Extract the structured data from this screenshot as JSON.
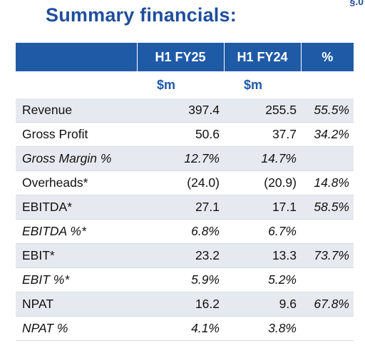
{
  "title": "Summary financials:",
  "corner_text": "§.0",
  "table": {
    "headers": [
      "",
      "H1 FY25",
      "H1 FY24",
      "%"
    ],
    "units": [
      "",
      "$m",
      "$m",
      ""
    ],
    "rows": [
      {
        "label": "Revenue",
        "fy25": "397.4",
        "fy24": "255.5",
        "pct": "55.5%",
        "italic": false,
        "shaded": true
      },
      {
        "label": "Gross Profit",
        "fy25": "50.6",
        "fy24": "37.7",
        "pct": "34.2%",
        "italic": false,
        "shaded": false
      },
      {
        "label": "Gross Margin %",
        "fy25": "12.7%",
        "fy24": "14.7%",
        "pct": "",
        "italic": true,
        "shaded": true
      },
      {
        "label": "Overheads*",
        "fy25": "(24.0)",
        "fy24": "(20.9)",
        "pct": "14.8%",
        "italic": false,
        "shaded": false
      },
      {
        "label": "EBITDA*",
        "fy25": "27.1",
        "fy24": "17.1",
        "pct": "58.5%",
        "italic": false,
        "shaded": true
      },
      {
        "label": "EBITDA %*",
        "fy25": "6.8%",
        "fy24": "6.7%",
        "pct": "",
        "italic": true,
        "shaded": false
      },
      {
        "label": "EBIT*",
        "fy25": "23.2",
        "fy24": "13.3",
        "pct": "73.7%",
        "italic": false,
        "shaded": true
      },
      {
        "label": "EBIT %*",
        "fy25": "5.9%",
        "fy24": "5.2%",
        "pct": "",
        "italic": true,
        "shaded": false
      },
      {
        "label": "NPAT",
        "fy25": "16.2",
        "fy24": "9.6",
        "pct": "67.8%",
        "italic": false,
        "shaded": true
      },
      {
        "label": "NPAT %",
        "fy25": "4.1%",
        "fy24": "3.8%",
        "pct": "",
        "italic": true,
        "shaded": false
      }
    ]
  },
  "colors": {
    "accent": "#1f5aa6",
    "title": "#1f4e9c",
    "shade": "#e6e9f0"
  }
}
